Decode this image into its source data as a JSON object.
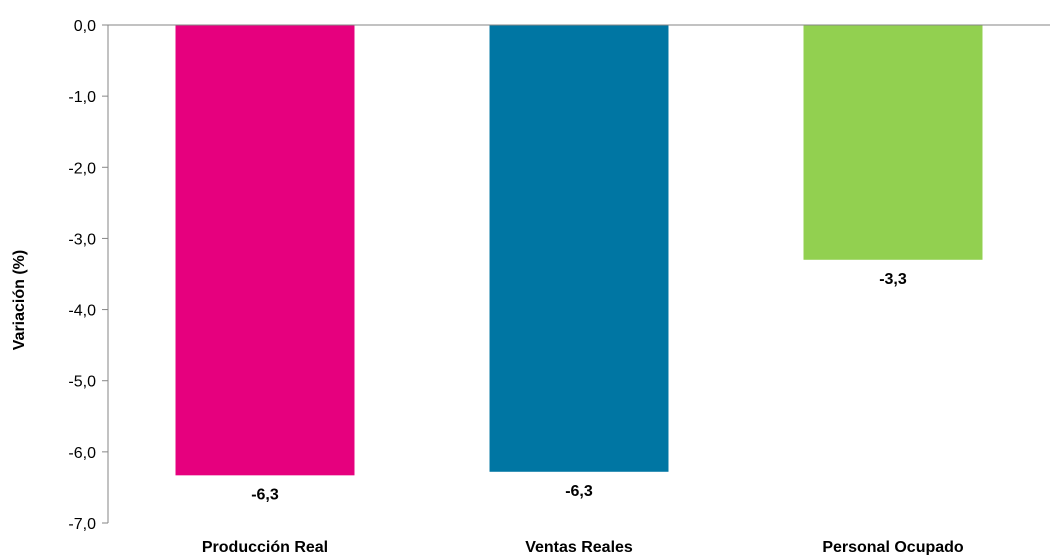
{
  "chart_data": {
    "type": "bar",
    "title": "",
    "xlabel": "",
    "ylabel": "Variación (%)",
    "ylim": [
      -7.0,
      0.0
    ],
    "yticks": [
      0.0,
      -1.0,
      -2.0,
      -3.0,
      -4.0,
      -5.0,
      -6.0,
      -7.0
    ],
    "ytick_labels": [
      "0,0",
      "-1,0",
      "-2,0",
      "-3,0",
      "-4,0",
      "-5,0",
      "-6,0",
      "-7,0"
    ],
    "categories": [
      "Producción Real",
      "Ventas Reales",
      "Personal Ocupado"
    ],
    "values": [
      -6.33,
      -6.28,
      -3.3
    ],
    "data_labels": [
      "-6,3",
      "-6,3",
      "-3,3"
    ],
    "colors": [
      "#E6007E",
      "#0076A3",
      "#92D050"
    ],
    "grid": false,
    "legend": "none"
  }
}
